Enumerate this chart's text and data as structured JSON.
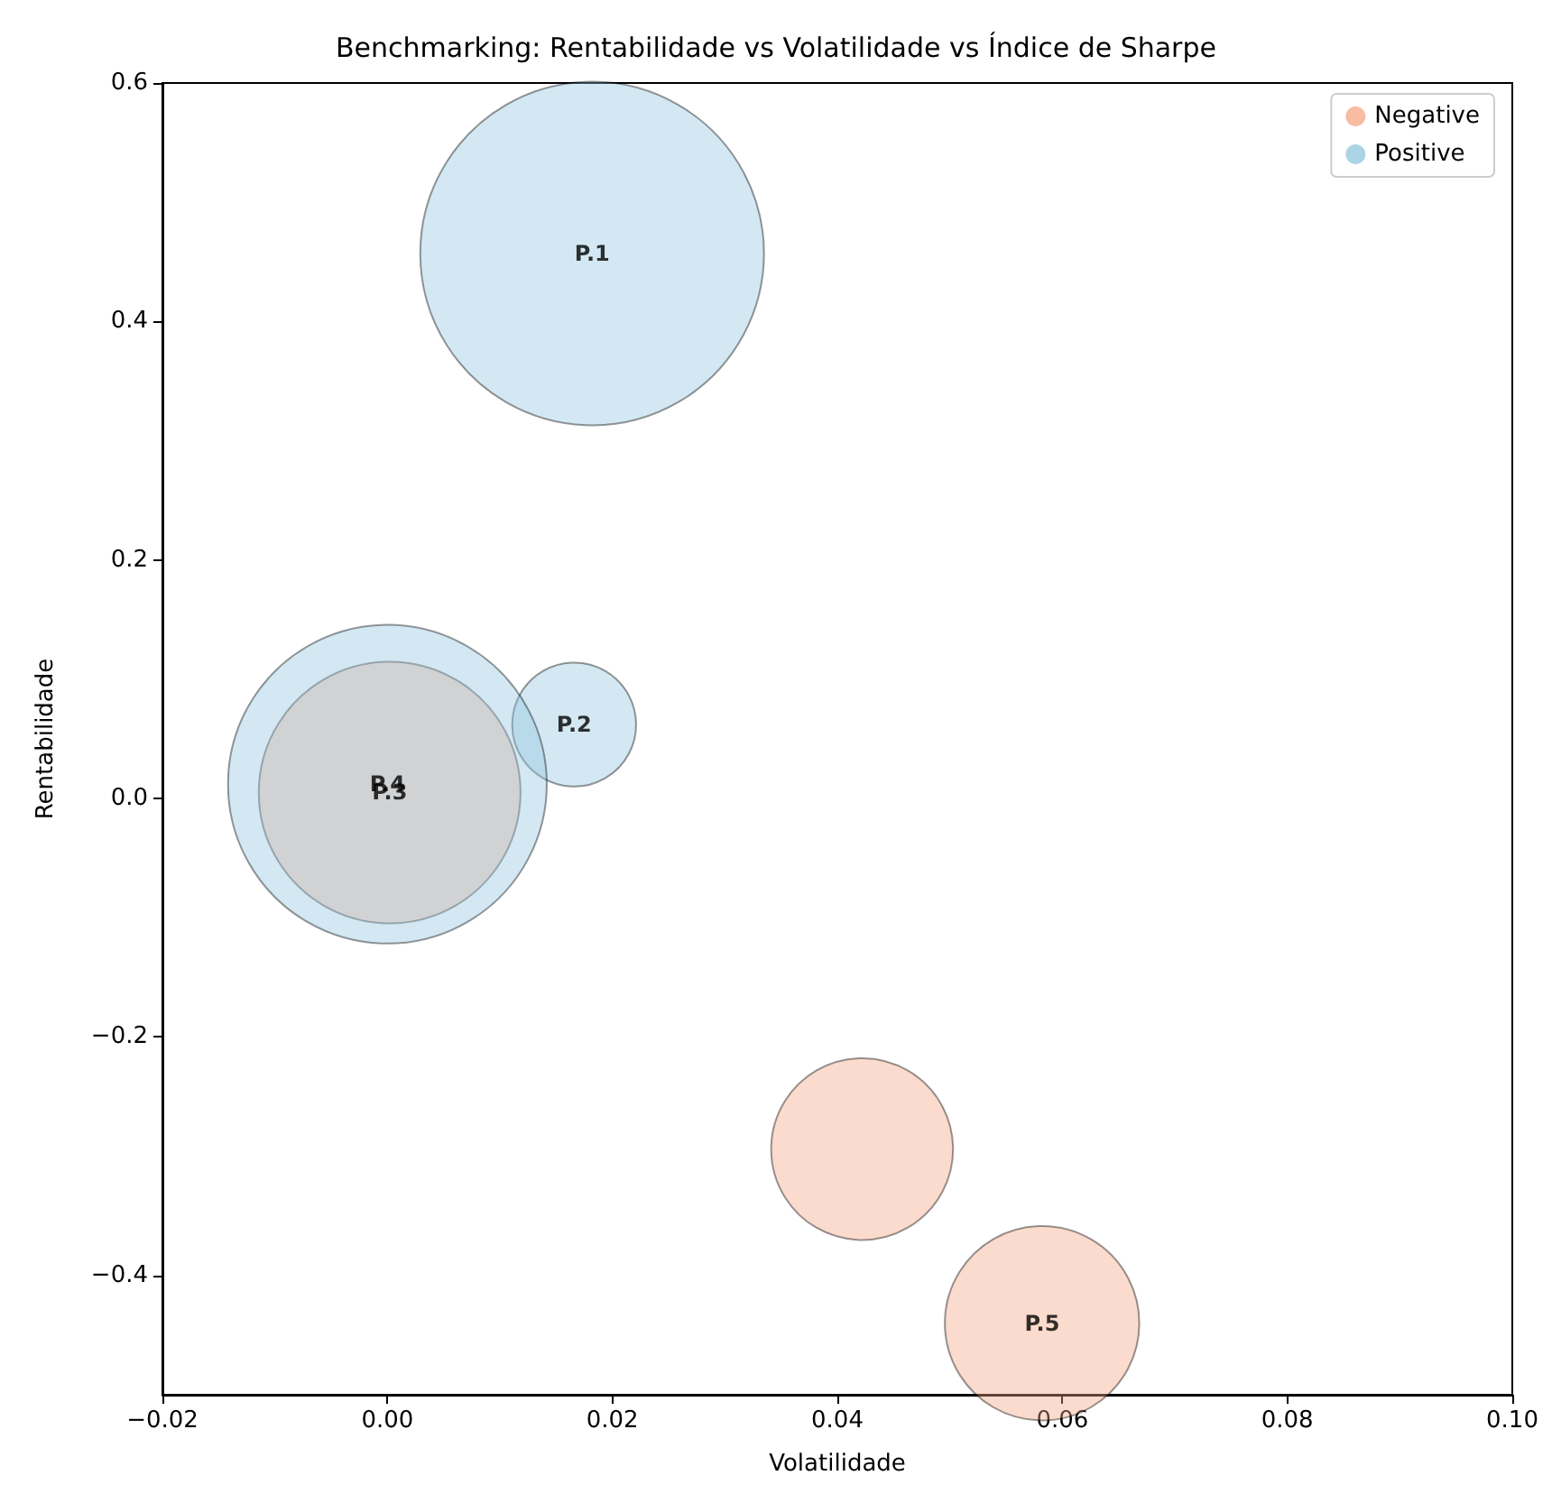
{
  "chart_data": {
    "type": "bubble",
    "title": "Benchmarking: Rentabilidade vs Volatilidade vs Índice de Sharpe",
    "xlabel": "Volatilidade",
    "ylabel": "Rentabilidade",
    "series": [
      {
        "name": "Negative",
        "color": "#f4a582",
        "x": [
          0.0422,
          0.0582,
          0.0002
        ],
        "values": [
          -0.294,
          -0.44,
          0.005
        ],
        "sizes": [
          0.28,
          0.32,
          0.58
        ]
      },
      {
        "name": "Positive",
        "color": "#92c5de",
        "x": [
          0.0182,
          0.0166,
          0.0
        ],
        "values": [
          0.457,
          0.062,
          0.012
        ],
        "sizes": [
          1,
          0.13,
          0.86
        ]
      }
    ],
    "annotations": [
      {
        "text": "P.1",
        "x": 0.0182,
        "y": 0.457
      },
      {
        "text": "P.2",
        "x": 0.0166,
        "y": 0.062
      },
      {
        "text": "P.4",
        "x": 0.0,
        "y": 0.012
      },
      {
        "text": "P.3",
        "x": 0.0002,
        "y": 0.005
      },
      {
        "text": "P.5",
        "x": 0.0582,
        "y": -0.44
      }
    ],
    "xlim": [
      -0.02,
      0.1
    ],
    "xticks": [
      {
        "value": -0.02,
        "label": "−0.02"
      },
      {
        "value": 0,
        "label": "0.00"
      },
      {
        "value": 0.02,
        "label": "0.02"
      },
      {
        "value": 0.04,
        "label": "0.04"
      },
      {
        "value": 0.06,
        "label": "0.06"
      },
      {
        "value": 0.08,
        "label": "0.08"
      },
      {
        "value": 0.1,
        "label": "0.10"
      }
    ],
    "ylim": [
      -0.5,
      0.6
    ],
    "yticks": [
      {
        "value": -0.4,
        "label": "−0.4"
      },
      {
        "value": -0.2,
        "label": "−0.2"
      },
      {
        "value": 0,
        "label": "0.0"
      },
      {
        "value": 0.2,
        "label": "0.2"
      },
      {
        "value": 0.4,
        "label": "0.4"
      },
      {
        "value": 0.6,
        "label": "0.6"
      }
    ],
    "grid": false,
    "legend": "top right",
    "marker": "circle"
  }
}
